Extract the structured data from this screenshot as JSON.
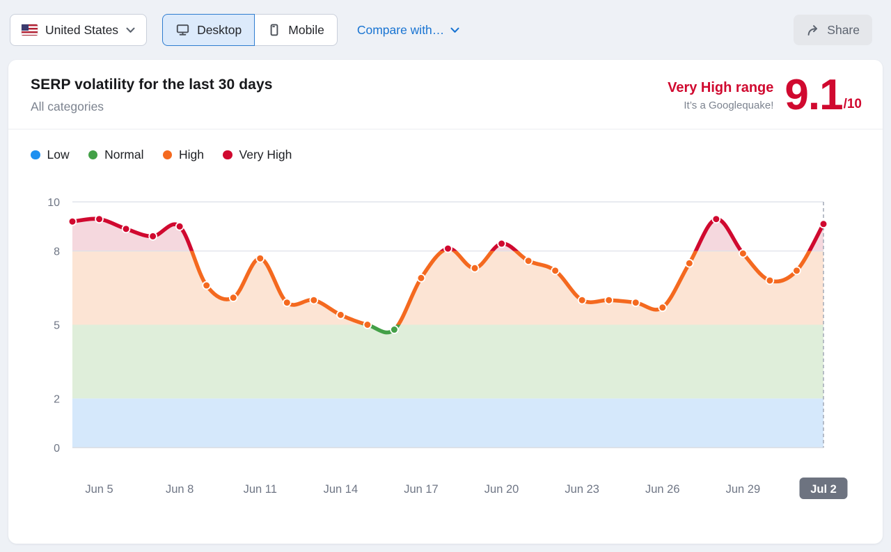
{
  "topbar": {
    "country_label": "United States",
    "desktop_label": "Desktop",
    "mobile_label": "Mobile",
    "compare_label": "Compare with…",
    "share_label": "Share"
  },
  "header": {
    "title": "SERP volatility for the last 30 days",
    "subtitle": "All categories",
    "range_label": "Very High range",
    "range_sub": "It’s a Googlequake!",
    "score": "9.1",
    "score_max": "/10"
  },
  "legend": [
    {
      "label": "Low",
      "color": "#1e90f0"
    },
    {
      "label": "Normal",
      "color": "#43a047"
    },
    {
      "label": "High",
      "color": "#f4691f"
    },
    {
      "label": "Very High",
      "color": "#d0092f"
    }
  ],
  "chart_data": {
    "type": "line",
    "title": "SERP volatility for the last 30 days",
    "x": [
      "Jun 4",
      "Jun 5",
      "Jun 6",
      "Jun 7",
      "Jun 8",
      "Jun 9",
      "Jun 10",
      "Jun 11",
      "Jun 12",
      "Jun 13",
      "Jun 14",
      "Jun 15",
      "Jun 16",
      "Jun 17",
      "Jun 18",
      "Jun 19",
      "Jun 20",
      "Jun 21",
      "Jun 22",
      "Jun 23",
      "Jun 24",
      "Jun 25",
      "Jun 26",
      "Jun 27",
      "Jun 28",
      "Jun 29",
      "Jun 30",
      "Jul 1",
      "Jul 2"
    ],
    "values": [
      9.2,
      9.3,
      8.9,
      8.6,
      9.0,
      6.6,
      6.1,
      7.7,
      5.9,
      6.0,
      5.4,
      5.0,
      4.8,
      6.9,
      8.1,
      7.3,
      8.3,
      7.6,
      7.2,
      6.0,
      6.0,
      5.9,
      5.7,
      7.5,
      9.3,
      7.9,
      6.8,
      7.2,
      9.1
    ],
    "ylim": [
      0,
      10
    ],
    "yticks": [
      0,
      2,
      5,
      8,
      10
    ],
    "grid_ticks": [
      8,
      10
    ],
    "x_tick_labels": [
      "Jun 5",
      "Jun 8",
      "Jun 11",
      "Jun 14",
      "Jun 17",
      "Jun 20",
      "Jun 23",
      "Jun 26",
      "Jun 29",
      "Jul 2"
    ],
    "last_label_highlighted": true,
    "bands": [
      {
        "name": "low",
        "from": 0,
        "to": 2,
        "color": "#d5e8fb"
      },
      {
        "name": "normal",
        "from": 2,
        "to": 5,
        "color": "#dfeeda"
      },
      {
        "name": "high",
        "from": 5,
        "to": 8,
        "color": "#fce4d4"
      },
      {
        "name": "very-high",
        "from": 8,
        "to": 10,
        "color": "#f5d8de"
      }
    ],
    "line_segments": [
      {
        "name": "very-high",
        "min": 8,
        "color": "#d0092f"
      },
      {
        "name": "high",
        "min": 5,
        "color": "#f4691f"
      },
      {
        "name": "normal",
        "min": 0,
        "color": "#43a047"
      }
    ],
    "grid_color": "#dde1e9",
    "axis_label_color": "#6f7685",
    "dashed_line_color": "#a7adba",
    "last_badge_bg": "#6d7380",
    "last_badge_text": "#ffffff"
  }
}
